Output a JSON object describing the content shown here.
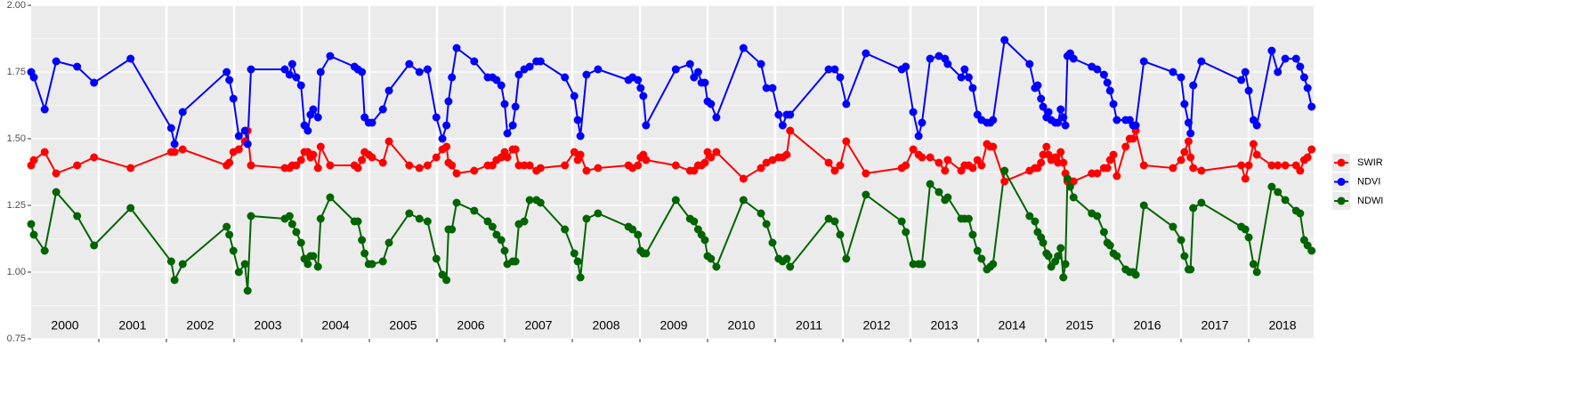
{
  "chart_data": {
    "type": "line",
    "x": [
      2000.0,
      2000.04,
      2000.2,
      2000.37,
      2000.68,
      2000.93,
      2001.47,
      2002.07,
      2002.12,
      2002.24,
      2002.89,
      2002.93,
      2002.99,
      2003.07,
      2003.16,
      2003.2,
      2003.25,
      2003.75,
      2003.82,
      2003.86,
      2003.92,
      2003.99,
      2004.04,
      2004.09,
      2004.13,
      2004.17,
      2004.24,
      2004.28,
      2004.42,
      2004.78,
      2004.83,
      2004.89,
      2004.93,
      2004.99,
      2005.04,
      2005.2,
      2005.29,
      2005.59,
      2005.74,
      2005.86,
      2005.99,
      2006.08,
      2006.14,
      2006.17,
      2006.22,
      2006.29,
      2006.55,
      2006.75,
      2006.82,
      2006.88,
      2006.95,
      2007.0,
      2007.04,
      2007.12,
      2007.16,
      2007.21,
      2007.29,
      2007.37,
      2007.47,
      2007.53,
      2007.89,
      2008.03,
      2008.08,
      2008.12,
      2008.21,
      2008.38,
      2008.83,
      2008.89,
      2008.97,
      2009.01,
      2009.05,
      2009.09,
      2009.53,
      2009.74,
      2009.8,
      2009.86,
      2009.91,
      2009.96,
      2010.0,
      2010.05,
      2010.13,
      2010.53,
      2010.79,
      2010.87,
      2010.96,
      2011.05,
      2011.11,
      2011.17,
      2011.22,
      2011.79,
      2011.88,
      2011.96,
      2012.05,
      2012.34,
      2012.87,
      2012.93,
      2013.04,
      2013.12,
      2013.17,
      2013.29,
      2013.42,
      2013.51,
      2013.55,
      2013.75,
      2013.8,
      2013.86,
      2013.92,
      2013.99,
      2014.05,
      2014.13,
      2014.18,
      2014.22,
      2014.39,
      2014.76,
      2014.84,
      2014.88,
      2014.93,
      2014.96,
      2015.01,
      2015.04,
      2015.08,
      2015.14,
      2015.18,
      2015.22,
      2015.26,
      2015.29,
      2015.32,
      2015.36,
      2015.41,
      2015.68,
      2015.76,
      2015.86,
      2015.91,
      2015.95,
      2016.0,
      2016.05,
      2016.18,
      2016.24,
      2016.29,
      2016.33,
      2016.45,
      2016.88,
      2017.0,
      2017.05,
      2017.11,
      2017.14,
      2017.18,
      2017.3,
      2017.89,
      2017.95,
      2018.0,
      2018.07,
      2018.12,
      2018.34,
      2018.43,
      2018.54,
      2018.7,
      2018.76,
      2018.82,
      2018.87,
      2018.93
    ],
    "series": [
      {
        "name": "SWIR",
        "color": "#ff0000",
        "values": [
          1.4,
          1.42,
          1.45,
          1.37,
          1.4,
          1.43,
          1.39,
          1.45,
          1.45,
          1.46,
          1.4,
          1.41,
          1.45,
          1.46,
          1.49,
          1.53,
          1.4,
          1.39,
          1.39,
          1.4,
          1.4,
          1.42,
          1.45,
          1.45,
          1.43,
          1.44,
          1.39,
          1.47,
          1.4,
          1.4,
          1.39,
          1.42,
          1.45,
          1.44,
          1.43,
          1.41,
          1.49,
          1.4,
          1.39,
          1.4,
          1.43,
          1.46,
          1.47,
          1.41,
          1.4,
          1.37,
          1.38,
          1.4,
          1.4,
          1.42,
          1.43,
          1.45,
          1.43,
          1.46,
          1.46,
          1.4,
          1.4,
          1.4,
          1.38,
          1.39,
          1.4,
          1.45,
          1.42,
          1.44,
          1.38,
          1.39,
          1.4,
          1.39,
          1.4,
          1.43,
          1.44,
          1.42,
          1.4,
          1.38,
          1.38,
          1.4,
          1.4,
          1.41,
          1.45,
          1.43,
          1.45,
          1.35,
          1.39,
          1.41,
          1.42,
          1.43,
          1.43,
          1.44,
          1.53,
          1.41,
          1.38,
          1.4,
          1.49,
          1.37,
          1.39,
          1.4,
          1.46,
          1.44,
          1.43,
          1.43,
          1.41,
          1.38,
          1.42,
          1.38,
          1.4,
          1.4,
          1.39,
          1.42,
          1.4,
          1.48,
          1.47,
          1.47,
          1.34,
          1.38,
          1.39,
          1.39,
          1.41,
          1.44,
          1.47,
          1.44,
          1.42,
          1.43,
          1.41,
          1.45,
          1.41,
          1.37,
          1.34,
          1.34,
          1.34,
          1.37,
          1.37,
          1.39,
          1.39,
          1.42,
          1.44,
          1.36,
          1.47,
          1.5,
          1.5,
          1.53,
          1.4,
          1.39,
          1.42,
          1.45,
          1.49,
          1.43,
          1.39,
          1.38,
          1.4,
          1.35,
          1.4,
          1.48,
          1.44,
          1.4,
          1.4,
          1.4,
          1.4,
          1.38,
          1.42,
          1.43,
          1.46
        ]
      },
      {
        "name": "NDVI",
        "color": "#0000ff",
        "values": [
          1.75,
          1.73,
          1.61,
          1.79,
          1.77,
          1.71,
          1.8,
          1.54,
          1.48,
          1.6,
          1.75,
          1.72,
          1.65,
          1.51,
          1.53,
          1.48,
          1.76,
          1.76,
          1.74,
          1.78,
          1.73,
          1.7,
          1.55,
          1.53,
          1.59,
          1.61,
          1.58,
          1.75,
          1.81,
          1.77,
          1.76,
          1.75,
          1.58,
          1.56,
          1.56,
          1.61,
          1.68,
          1.78,
          1.75,
          1.76,
          1.58,
          1.5,
          1.55,
          1.64,
          1.73,
          1.84,
          1.79,
          1.73,
          1.73,
          1.72,
          1.7,
          1.63,
          1.52,
          1.55,
          1.62,
          1.74,
          1.76,
          1.77,
          1.79,
          1.79,
          1.73,
          1.66,
          1.57,
          1.51,
          1.74,
          1.76,
          1.72,
          1.73,
          1.72,
          1.69,
          1.66,
          1.55,
          1.76,
          1.78,
          1.73,
          1.75,
          1.71,
          1.71,
          1.64,
          1.63,
          1.58,
          1.84,
          1.78,
          1.69,
          1.69,
          1.59,
          1.55,
          1.59,
          1.59,
          1.76,
          1.76,
          1.73,
          1.63,
          1.82,
          1.76,
          1.77,
          1.6,
          1.51,
          1.56,
          1.8,
          1.81,
          1.8,
          1.78,
          1.73,
          1.76,
          1.73,
          1.69,
          1.59,
          1.57,
          1.56,
          1.56,
          1.57,
          1.87,
          1.78,
          1.69,
          1.7,
          1.65,
          1.62,
          1.58,
          1.6,
          1.57,
          1.56,
          1.56,
          1.61,
          1.58,
          1.55,
          1.81,
          1.82,
          1.8,
          1.77,
          1.76,
          1.74,
          1.71,
          1.68,
          1.63,
          1.57,
          1.57,
          1.57,
          1.55,
          1.55,
          1.79,
          1.75,
          1.73,
          1.63,
          1.56,
          1.52,
          1.7,
          1.79,
          1.72,
          1.75,
          1.68,
          1.57,
          1.55,
          1.83,
          1.75,
          1.8,
          1.8,
          1.77,
          1.73,
          1.69,
          1.62
        ]
      },
      {
        "name": "NDWI",
        "color": "#006400",
        "values": [
          1.18,
          1.14,
          1.08,
          1.3,
          1.21,
          1.1,
          1.24,
          1.04,
          0.97,
          1.03,
          1.17,
          1.14,
          1.08,
          1.0,
          1.03,
          0.93,
          1.21,
          1.2,
          1.21,
          1.18,
          1.15,
          1.11,
          1.05,
          1.03,
          1.06,
          1.06,
          1.02,
          1.2,
          1.28,
          1.19,
          1.19,
          1.12,
          1.07,
          1.03,
          1.03,
          1.04,
          1.11,
          1.22,
          1.2,
          1.19,
          1.05,
          0.99,
          0.97,
          1.16,
          1.16,
          1.26,
          1.23,
          1.19,
          1.17,
          1.14,
          1.12,
          1.08,
          1.03,
          1.04,
          1.04,
          1.18,
          1.19,
          1.27,
          1.27,
          1.26,
          1.16,
          1.07,
          1.04,
          0.98,
          1.2,
          1.22,
          1.17,
          1.16,
          1.14,
          1.08,
          1.07,
          1.07,
          1.27,
          1.2,
          1.19,
          1.16,
          1.14,
          1.12,
          1.06,
          1.05,
          1.02,
          1.27,
          1.22,
          1.18,
          1.11,
          1.05,
          1.04,
          1.05,
          1.02,
          1.2,
          1.19,
          1.14,
          1.05,
          1.29,
          1.19,
          1.15,
          1.03,
          1.03,
          1.03,
          1.33,
          1.3,
          1.27,
          1.28,
          1.2,
          1.2,
          1.2,
          1.14,
          1.08,
          1.05,
          1.01,
          1.02,
          1.03,
          1.38,
          1.21,
          1.19,
          1.15,
          1.13,
          1.11,
          1.07,
          1.06,
          1.02,
          1.04,
          1.06,
          1.09,
          0.98,
          1.03,
          1.35,
          1.32,
          1.28,
          1.22,
          1.21,
          1.15,
          1.11,
          1.1,
          1.07,
          1.06,
          1.01,
          1.0,
          1.0,
          0.99,
          1.25,
          1.17,
          1.12,
          1.06,
          1.01,
          1.01,
          1.24,
          1.26,
          1.17,
          1.16,
          1.13,
          1.03,
          1.0,
          1.32,
          1.3,
          1.27,
          1.23,
          1.22,
          1.12,
          1.1,
          1.08
        ]
      }
    ],
    "xlim": [
      2000,
      2018.96
    ],
    "ylim": [
      0.75,
      2.0
    ],
    "yticks": [
      {
        "value": 0.75,
        "label": "0.75"
      },
      {
        "value": 1.0,
        "label": "1.00"
      },
      {
        "value": 1.25,
        "label": "1.25"
      },
      {
        "value": 1.5,
        "label": "1.50"
      },
      {
        "value": 1.75,
        "label": "1.75"
      },
      {
        "value": 2.0,
        "label": "2.00"
      }
    ],
    "xticks": [
      {
        "value": 2000.5,
        "label": "2000"
      },
      {
        "value": 2001.5,
        "label": "2001"
      },
      {
        "value": 2002.5,
        "label": "2002"
      },
      {
        "value": 2003.5,
        "label": "2003"
      },
      {
        "value": 2004.5,
        "label": "2004"
      },
      {
        "value": 2005.5,
        "label": "2005"
      },
      {
        "value": 2006.5,
        "label": "2006"
      },
      {
        "value": 2007.5,
        "label": "2007"
      },
      {
        "value": 2008.5,
        "label": "2008"
      },
      {
        "value": 2009.5,
        "label": "2009"
      },
      {
        "value": 2010.5,
        "label": "2010"
      },
      {
        "value": 2011.5,
        "label": "2011"
      },
      {
        "value": 2012.5,
        "label": "2012"
      },
      {
        "value": 2013.5,
        "label": "2013"
      },
      {
        "value": 2014.5,
        "label": "2014"
      },
      {
        "value": 2015.5,
        "label": "2015"
      },
      {
        "value": 2016.5,
        "label": "2016"
      },
      {
        "value": 2017.5,
        "label": "2017"
      },
      {
        "value": 2018.5,
        "label": "2018"
      }
    ],
    "xgrid": [
      2001,
      2002,
      2003,
      2004,
      2005,
      2006,
      2007,
      2008,
      2009,
      2010,
      2011,
      2012,
      2013,
      2014,
      2015,
      2016,
      2017,
      2018
    ],
    "grid": true,
    "legend": "right"
  }
}
